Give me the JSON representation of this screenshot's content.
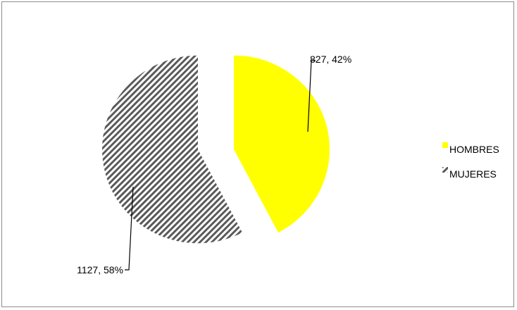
{
  "chart_data": {
    "type": "pie",
    "style": "exploded",
    "series": [
      {
        "name": "HOMBRES",
        "value": 827,
        "percent": 42,
        "color": "#ffff00",
        "fill": "solid",
        "label": "827, 42%"
      },
      {
        "name": "MUJERES",
        "value": 1127,
        "percent": 58,
        "color": "#595959",
        "fill": "diagonal-stripes",
        "label": "1127, 58%"
      }
    ],
    "title": "",
    "legend": {
      "position": "right",
      "entries": [
        "HOMBRES",
        "MUJERES"
      ]
    }
  }
}
